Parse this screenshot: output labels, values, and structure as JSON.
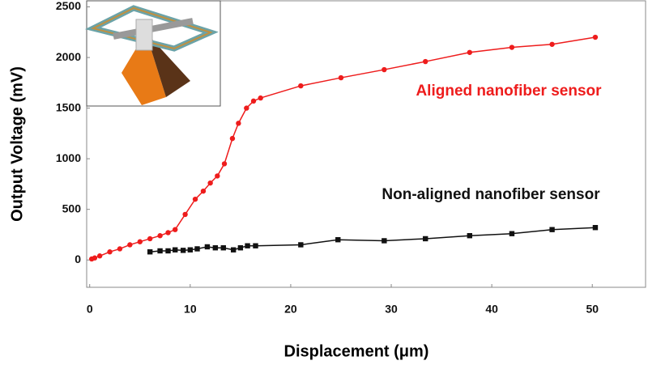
{
  "chart_data": {
    "type": "line",
    "x_label": "Displacement (μm)",
    "y_label": "Output Voltage (mV)",
    "xlim": [
      -0.3,
      55.3
    ],
    "ylim": [
      -270,
      2560
    ],
    "xticks": [
      0,
      10,
      20,
      30,
      40,
      50
    ],
    "yticks": [
      0,
      500,
      1000,
      1500,
      2000,
      2500
    ],
    "series": [
      {
        "name": "Aligned nanofiber sensor",
        "color": "#ee1c1c",
        "x": [
          0.2,
          0.5,
          1,
          2,
          3,
          4,
          5,
          6,
          7,
          7.8,
          8.5,
          9.5,
          10.5,
          11.3,
          12,
          12.7,
          13.4,
          14.2,
          14.8,
          15.6,
          16.3,
          17,
          21,
          25,
          29.3,
          33.4,
          37.8,
          42,
          46,
          50.3
        ],
        "values": [
          10,
          20,
          40,
          80,
          110,
          150,
          180,
          210,
          240,
          270,
          300,
          450,
          600,
          680,
          760,
          830,
          950,
          1200,
          1350,
          1500,
          1570,
          1600,
          1720,
          1800,
          1880,
          1960,
          2050,
          2100,
          2130,
          2200
        ]
      },
      {
        "name": "Non-aligned nanofiber sensor",
        "color": "#111111",
        "x": [
          6,
          7,
          7.8,
          8.5,
          9.3,
          10,
          10.7,
          11.7,
          12.5,
          13.3,
          14.3,
          15,
          15.7,
          16.5,
          21,
          24.7,
          29.3,
          33.4,
          37.8,
          42,
          46,
          50.3
        ],
        "values": [
          80,
          90,
          90,
          100,
          95,
          100,
          110,
          130,
          120,
          120,
          100,
          120,
          140,
          140,
          150,
          200,
          190,
          210,
          240,
          260,
          300,
          320
        ]
      }
    ]
  }
}
